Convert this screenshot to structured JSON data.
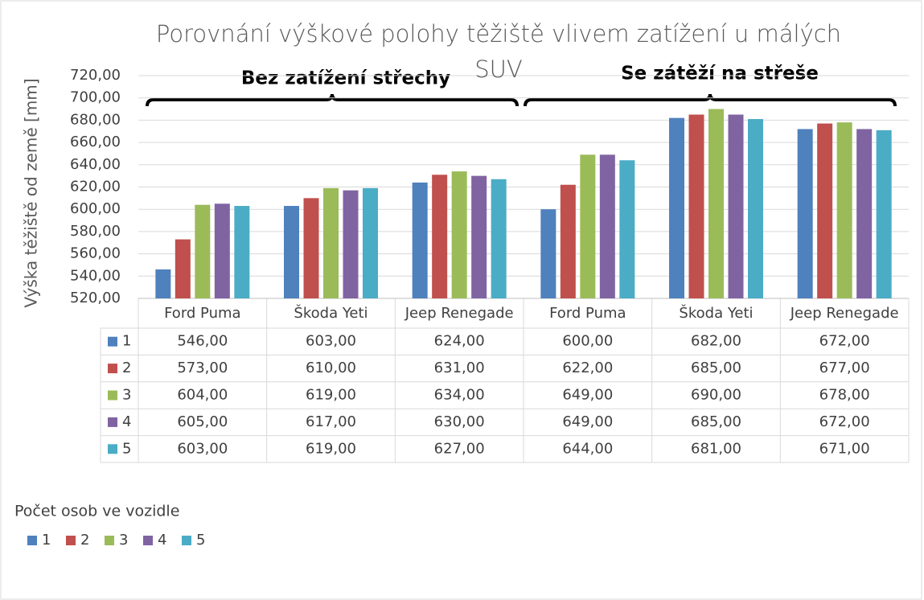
{
  "chart_data": {
    "type": "bar",
    "title": "Porovnání výškové polohy těžiště vlivem zatížení u málých SUV",
    "y_label": "Výška těžiště od země [mm]",
    "annotations": [
      "Bez zatížení střechy",
      "Se zátěží na střeše"
    ],
    "legend_title": "Počet osob ve vozidle",
    "categories": [
      "Ford Puma",
      "Škoda Yeti",
      "Jeep Renegade",
      "Ford Puma",
      "Škoda Yeti",
      "Jeep Renegade"
    ],
    "series": [
      {
        "name": "1",
        "color": "#4f81bd",
        "values": [
          546,
          603,
          624,
          600,
          682,
          672
        ],
        "value_labels": [
          "546,00",
          "603,00",
          "624,00",
          "600,00",
          "682,00",
          "672,00"
        ]
      },
      {
        "name": "2",
        "color": "#c0504d",
        "values": [
          573,
          610,
          631,
          622,
          685,
          677
        ],
        "value_labels": [
          "573,00",
          "610,00",
          "631,00",
          "622,00",
          "685,00",
          "677,00"
        ]
      },
      {
        "name": "3",
        "color": "#9bbb59",
        "values": [
          604,
          619,
          634,
          649,
          690,
          678
        ],
        "value_labels": [
          "604,00",
          "619,00",
          "634,00",
          "649,00",
          "690,00",
          "678,00"
        ]
      },
      {
        "name": "4",
        "color": "#8064a2",
        "values": [
          605,
          617,
          630,
          649,
          685,
          672
        ],
        "value_labels": [
          "605,00",
          "617,00",
          "630,00",
          "649,00",
          "685,00",
          "672,00"
        ]
      },
      {
        "name": "5",
        "color": "#4bacc6",
        "values": [
          603,
          619,
          627,
          644,
          681,
          671
        ],
        "value_labels": [
          "603,00",
          "619,00",
          "627,00",
          "644,00",
          "681,00",
          "671,00"
        ]
      }
    ],
    "ylim": [
      520,
      720
    ],
    "yticks": [
      {
        "value": 520,
        "label": "520,00"
      },
      {
        "value": 540,
        "label": "540,00"
      },
      {
        "value": 560,
        "label": "560,00"
      },
      {
        "value": 580,
        "label": "580,00"
      },
      {
        "value": 600,
        "label": "600,00"
      },
      {
        "value": 620,
        "label": "620,00"
      },
      {
        "value": 640,
        "label": "640,00"
      },
      {
        "value": 660,
        "label": "660,00"
      },
      {
        "value": 680,
        "label": "680,00"
      },
      {
        "value": 700,
        "label": "700,00"
      },
      {
        "value": 720,
        "label": "720,00"
      }
    ],
    "grid": true
  }
}
